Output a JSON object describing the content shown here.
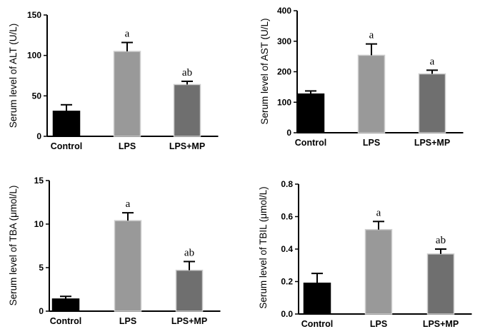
{
  "chart_data": [
    {
      "type": "bar",
      "ylabel": "Serum level of ALT (U/L)",
      "categories": [
        "Control",
        "LPS",
        "LPS+MP"
      ],
      "values": [
        31,
        105,
        64
      ],
      "errors": [
        8,
        11,
        4
      ],
      "annotations": [
        "",
        "a",
        "ab"
      ],
      "ylim": [
        0,
        150
      ],
      "yticks": [
        0,
        50,
        100,
        150
      ],
      "bar_colors": [
        "#000000",
        "#999999",
        "#6f6f6f"
      ]
    },
    {
      "type": "bar",
      "ylabel": "Serum level of AST (U/L)",
      "categories": [
        "Control",
        "LPS",
        "LPS+MP"
      ],
      "values": [
        127,
        254,
        193
      ],
      "errors": [
        10,
        37,
        12
      ],
      "annotations": [
        "",
        "a",
        "a"
      ],
      "ylim": [
        0,
        400
      ],
      "yticks": [
        0,
        100,
        200,
        300,
        400
      ],
      "bar_colors": [
        "#000000",
        "#999999",
        "#6f6f6f"
      ]
    },
    {
      "type": "bar",
      "ylabel": "Serum level of TBA (μmol/L)",
      "categories": [
        "Control",
        "LPS",
        "LPS+MP"
      ],
      "values": [
        1.4,
        10.4,
        4.7
      ],
      "errors": [
        0.3,
        0.9,
        1.0
      ],
      "annotations": [
        "",
        "a",
        "ab"
      ],
      "ylim": [
        0,
        15
      ],
      "yticks": [
        0,
        5,
        10,
        15
      ],
      "bar_colors": [
        "#000000",
        "#999999",
        "#6f6f6f"
      ]
    },
    {
      "type": "bar",
      "ylabel": "Serum level of TBIL (μmol/L)",
      "categories": [
        "Control",
        "LPS",
        "LPS+MP"
      ],
      "values": [
        0.19,
        0.52,
        0.37
      ],
      "errors": [
        0.06,
        0.05,
        0.03
      ],
      "annotations": [
        "",
        "a",
        "ab"
      ],
      "ylim": [
        0,
        0.8
      ],
      "yticks": [
        0.0,
        0.2,
        0.4,
        0.6,
        0.8
      ],
      "tick_decimals": 1,
      "bar_colors": [
        "#000000",
        "#999999",
        "#6f6f6f"
      ]
    }
  ]
}
